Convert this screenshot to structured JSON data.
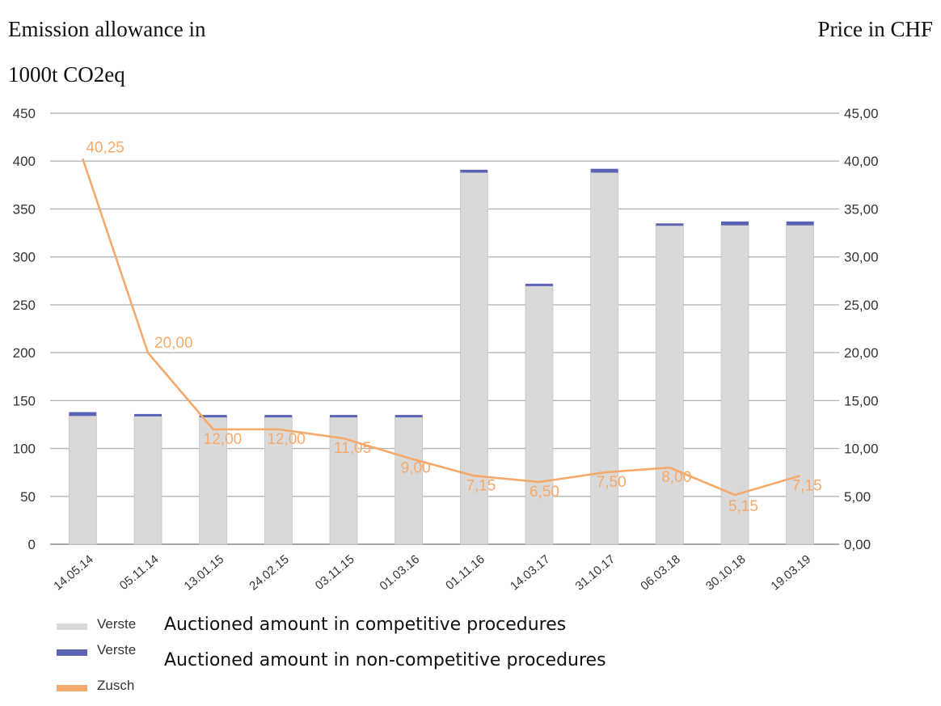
{
  "chart_data": {
    "type": "bar",
    "ylabel_left": [
      "Emission allowance in",
      "1000t CO2eq"
    ],
    "ylabel_right": "Price in CHF",
    "categories": [
      "14.05.14",
      "05.11.14",
      "13.01.15",
      "24.02.15",
      "03.11.15",
      "01.03.16",
      "01.11.16",
      "14.03.17",
      "31.10.17",
      "06.03.18",
      "30.10.18",
      "19.03.19"
    ],
    "ylim_left": [
      0,
      450
    ],
    "ylim_right": [
      0,
      45
    ],
    "yticks_left": [
      "450",
      "400",
      "350",
      "300",
      "250",
      "200",
      "150",
      "100",
      "50",
      "0"
    ],
    "yticks_right": [
      "45,00",
      "40,00",
      "35,00",
      "30,00",
      "25,00",
      "20,00",
      "15,00",
      "10,00",
      "5,00",
      "0,00"
    ],
    "grid": true,
    "stacked": true,
    "series": [
      {
        "name": "Verste",
        "axis": "left",
        "color": "#d9d9d9",
        "values": [
          134,
          134,
          133,
          133,
          133,
          133,
          388,
          270,
          388,
          333,
          333,
          333
        ]
      },
      {
        "name": "Verste",
        "axis": "left",
        "color": "#5b63b5",
        "values": [
          4,
          2,
          2,
          2,
          2,
          2,
          3,
          2,
          4,
          2,
          4,
          4
        ]
      },
      {
        "name": "Zusch",
        "axis": "right",
        "type": "line",
        "color": "#f5a96a",
        "values": [
          40.25,
          20.0,
          12.0,
          12.0,
          11.05,
          9.0,
          7.15,
          6.5,
          7.5,
          8.0,
          5.15,
          7.15
        ],
        "labels": [
          "40,25",
          "20,00",
          "12,00",
          "12,00",
          "11,05",
          "9,00",
          "7,15",
          "6,50",
          "7,50",
          "8,00",
          "5,15",
          "7,15"
        ]
      }
    ],
    "legend": {
      "placement": "bottom-left",
      "translations": [
        "Auctioned amount in competitive procedures",
        "Auctioned amount in non-competitive procedures"
      ]
    }
  }
}
